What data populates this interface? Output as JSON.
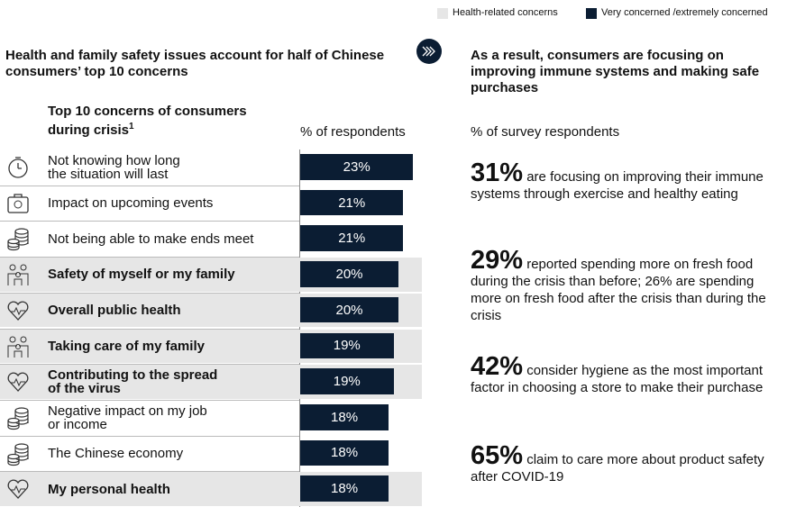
{
  "legend": [
    {
      "name": "Health-related concerns",
      "color": "#e6e6e6"
    },
    {
      "name": "Very concerned /extremely concerned",
      "color": "#0b1d33"
    }
  ],
  "left_heading": "Health and family safety issues account for half of Chinese consumers’ top 10 concerns",
  "right_heading": "As a result, consumers are focusing on improving immune systems and making safe purchases",
  "right_subtitle": "% of survey respondents",
  "stats": [
    {
      "figure": "31%",
      "text": "are focusing on improving their immune systems through exercise and healthy eating"
    },
    {
      "figure": "29%",
      "text": "reported spending more on fresh food during the crisis than before; 26% are spending more on fresh food after the crisis than during the crisis"
    },
    {
      "figure": "42%",
      "text": "consider hygiene as the most important factor in choosing a store to make their purchase"
    },
    {
      "figure": "65%",
      "text": "claim to care more about product safety after COVID-19"
    }
  ],
  "chart_data": {
    "type": "bar",
    "orientation": "horizontal",
    "title": "Top 10 concerns of consumers\nduring crisis",
    "title_footnote": "1",
    "value_axis_label": "% of respondents",
    "categories": [
      "Not knowing how long\nthe situation will last",
      "Impact on upcoming events",
      "Not being able to make ends meet",
      "Safety of myself or my family",
      "Overall public health",
      "Taking care of my family",
      "Contributing to the spread\nof the virus",
      "Negative impact on my job\nor income",
      "The Chinese economy",
      "My personal health"
    ],
    "values": [
      23,
      21,
      21,
      20,
      20,
      19,
      19,
      18,
      18,
      18
    ],
    "value_labels": [
      "23%",
      "21%",
      "21%",
      "20%",
      "20%",
      "19%",
      "19%",
      "18%",
      "18%",
      "18%"
    ],
    "health_related": [
      false,
      false,
      false,
      true,
      true,
      true,
      true,
      false,
      false,
      true
    ],
    "color": "#0b1d33",
    "highlight_color": "#e6e6e6"
  }
}
